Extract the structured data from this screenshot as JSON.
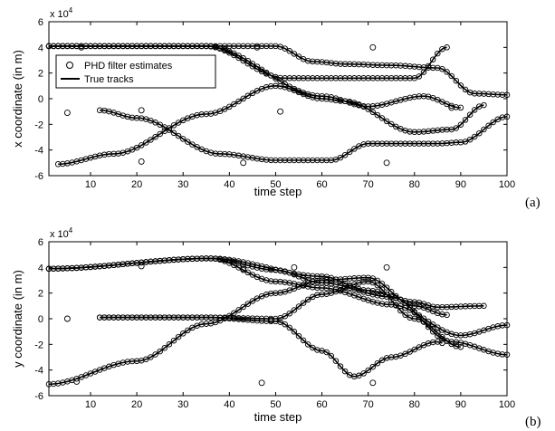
{
  "figure": {
    "panel_labels": [
      "(a)",
      "(b)"
    ]
  },
  "chart_data": [
    {
      "type": "scatter",
      "panel": "(a)",
      "xlabel": "time step",
      "ylabel": "x coordinate (in m)",
      "y_exponent_label": "x 10",
      "y_exponent_power": "4",
      "xlim": [
        1,
        100
      ],
      "ylim": [
        -60000,
        60000
      ],
      "xticks": [
        10,
        20,
        30,
        40,
        50,
        60,
        70,
        80,
        90,
        100
      ],
      "yticks": [
        -6,
        -4,
        -2,
        0,
        2,
        4,
        6
      ],
      "grid": false,
      "legend": {
        "placement": "top-left",
        "entries": [
          "PHD filter estimates",
          "True tracks"
        ]
      },
      "series": [
        {
          "name": "True tracks",
          "style": "line",
          "tracks": [
            {
              "start": 1,
              "end": 100,
              "keys": [
                [
                  1,
                  41000
                ],
                [
                  35,
                  41000
                ],
                [
                  50,
                  41000
                ],
                [
                  58,
                  29000
                ],
                [
                  65,
                  27000
                ],
                [
                  75,
                  26000
                ],
                [
                  85,
                  24000
                ],
                [
                  93,
                  4000
                ],
                [
                  100,
                  3000
                ]
              ]
            },
            {
              "start": 1,
              "end": 87,
              "keys": [
                [
                  1,
                  41000
                ],
                [
                  35,
                  41000
                ],
                [
                  52,
                  16000
                ],
                [
                  65,
                  16000
                ],
                [
                  80,
                  16000
                ],
                [
                  87,
                  40000
                ]
              ]
            },
            {
              "start": 1,
              "end": 90,
              "keys": [
                [
                  1,
                  41000
                ],
                [
                  35,
                  41000
                ],
                [
                  60,
                  2000
                ],
                [
                  70,
                  -6000
                ],
                [
                  82,
                  2000
                ],
                [
                  90,
                  -7000
                ]
              ]
            },
            {
              "start": 3,
              "end": 95,
              "keys": [
                [
                  3,
                  -51000
                ],
                [
                  15,
                  -43000
                ],
                [
                  35,
                  -12000
                ],
                [
                  50,
                  10000
                ],
                [
                  60,
                  0
                ],
                [
                  65,
                  -2000
                ],
                [
                  80,
                  -26000
                ],
                [
                  88,
                  -24000
                ],
                [
                  95,
                  -5000
                ]
              ]
            },
            {
              "start": 12,
              "end": 100,
              "keys": [
                [
                  12,
                  -9000
                ],
                [
                  20,
                  -15000
                ],
                [
                  38,
                  -43000
                ],
                [
                  50,
                  -48000
                ],
                [
                  62,
                  -48000
                ],
                [
                  70,
                  -35000
                ],
                [
                  85,
                  -35000
                ],
                [
                  90,
                  -34000
                ],
                [
                  100,
                  -14000
                ]
              ]
            }
          ]
        },
        {
          "name": "PHD filter estimates",
          "style": "markers",
          "follows_tracks": true,
          "clutter": [
            [
              5,
              -11000
            ],
            [
              8,
              40000
            ],
            [
              21,
              -9000
            ],
            [
              21,
              -49000
            ],
            [
              43,
              -50000
            ],
            [
              46,
              40000
            ],
            [
              51,
              -10000
            ],
            [
              71,
              40000
            ],
            [
              74,
              -50000
            ],
            [
              88,
              -7000
            ]
          ]
        }
      ]
    },
    {
      "type": "scatter",
      "panel": "(b)",
      "xlabel": "time step",
      "ylabel": "y coordinate (in m)",
      "y_exponent_label": "x 10",
      "y_exponent_power": "4",
      "xlim": [
        1,
        100
      ],
      "ylim": [
        -60000,
        60000
      ],
      "xticks": [
        10,
        20,
        30,
        40,
        50,
        60,
        70,
        80,
        90,
        100
      ],
      "yticks": [
        -6,
        -4,
        -2,
        0,
        2,
        4,
        6
      ],
      "grid": false,
      "series": [
        {
          "name": "True tracks",
          "style": "line",
          "tracks": [
            {
              "start": 1,
              "end": 100,
              "keys": [
                [
                  1,
                  39000
                ],
                [
                  36,
                  47000
                ],
                [
                  50,
                  38000
                ],
                [
                  60,
                  28000
                ],
                [
                  75,
                  17000
                ],
                [
                  88,
                  -18000
                ],
                [
                  100,
                  -28000
                ]
              ]
            },
            {
              "start": 1,
              "end": 95,
              "keys": [
                [
                  1,
                  39000
                ],
                [
                  36,
                  47000
                ],
                [
                  60,
                  33000
                ],
                [
                  70,
                  22000
                ],
                [
                  80,
                  13000
                ],
                [
                  85,
                  9000
                ],
                [
                  95,
                  10000
                ]
              ]
            },
            {
              "start": 1,
              "end": 100,
              "keys": [
                [
                  1,
                  39000
                ],
                [
                  36,
                  47000
                ],
                [
                  50,
                  29000
                ],
                [
                  60,
                  24000
                ],
                [
                  75,
                  11000
                ],
                [
                  90,
                  -13000
                ],
                [
                  100,
                  -5000
                ]
              ]
            },
            {
              "start": 1,
              "end": 87,
              "keys": [
                [
                  1,
                  -51000
                ],
                [
                  20,
                  -33000
                ],
                [
                  35,
                  -4000
                ],
                [
                  50,
                  20000
                ],
                [
                  60,
                  30000
                ],
                [
                  70,
                  32000
                ],
                [
                  80,
                  10000
                ],
                [
                  87,
                  3000
                ]
              ]
            },
            {
              "start": 12,
              "end": 90,
              "keys": [
                [
                  12,
                  1000
                ],
                [
                  35,
                  1000
                ],
                [
                  50,
                  0
                ],
                [
                  60,
                  19000
                ],
                [
                  70,
                  29000
                ],
                [
                  80,
                  0
                ],
                [
                  90,
                  -22000
                ]
              ]
            },
            {
              "start": 12,
              "end": 86,
              "keys": [
                [
                  12,
                  1000
                ],
                [
                  35,
                  1000
                ],
                [
                  50,
                  -2000
                ],
                [
                  60,
                  -25000
                ],
                [
                  67,
                  -45000
                ],
                [
                  75,
                  -30000
                ],
                [
                  85,
                  -18000
                ],
                [
                  86,
                  -19000
                ]
              ]
            }
          ]
        },
        {
          "name": "PHD filter estimates",
          "style": "markers",
          "follows_tracks": true,
          "clutter": [
            [
              5,
              0
            ],
            [
              7,
              -49000
            ],
            [
              21,
              41000
            ],
            [
              43,
              39000
            ],
            [
              47,
              -50000
            ],
            [
              49,
              -1000
            ],
            [
              54,
              40000
            ],
            [
              71,
              -50000
            ],
            [
              74,
              40000
            ]
          ]
        }
      ]
    }
  ]
}
